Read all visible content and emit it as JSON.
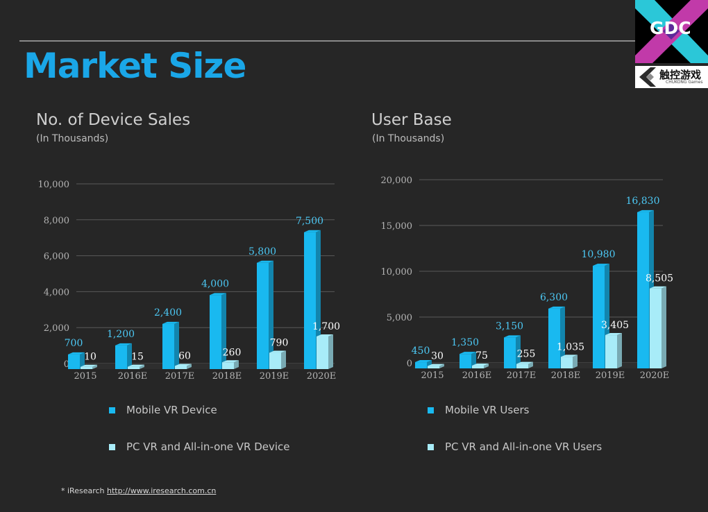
{
  "page_title": "Market Size",
  "logos": {
    "gdc_text": "GDC",
    "chukong_cn": "触控游戏",
    "chukong_en": "CHUKONG Games"
  },
  "colors": {
    "mobile": "#19b9f0",
    "pc": "#a8ecf8",
    "axis_text": "#b4b4b4",
    "grid": "#5a5a5a",
    "label_mobile": "#4cc8f4",
    "label_pc": "#ffffff"
  },
  "footnote": {
    "prefix": "* iResearch ",
    "link_text": "http://www.iresearch.com.cn"
  },
  "chart_data": [
    {
      "type": "bar",
      "title": "No. of Device Sales",
      "subtitle": "(In Thousands)",
      "categories": [
        "2015",
        "2016E",
        "2017E",
        "2018E",
        "2019E",
        "2020E"
      ],
      "series": [
        {
          "name": "Mobile VR Device",
          "values": [
            700,
            1200,
            2400,
            4000,
            5800,
            7500
          ],
          "labels": [
            "700",
            "1,200",
            "2,400",
            "4,000",
            "5,800",
            "7,500"
          ]
        },
        {
          "name": "PC VR and All-in-one VR Device",
          "values": [
            10,
            15,
            60,
            260,
            790,
            1700
          ],
          "labels": [
            "10",
            "15",
            "60",
            "260",
            "790",
            "1,700"
          ]
        }
      ],
      "ylim": [
        0,
        10000
      ],
      "yticks": [
        0,
        2000,
        4000,
        6000,
        8000,
        10000
      ],
      "ytick_labels": [
        "0",
        "2,000",
        "4,000",
        "6,000",
        "8,000",
        "10,000"
      ],
      "grid": true,
      "legend_position": "bottom"
    },
    {
      "type": "bar",
      "title": "User Base",
      "subtitle": "(In Thousands)",
      "categories": [
        "2015",
        "2016E",
        "2017E",
        "2018E",
        "2019E",
        "2020E"
      ],
      "series": [
        {
          "name": "Mobile VR Users",
          "values": [
            450,
            1350,
            3150,
            6300,
            10980,
            16830
          ],
          "labels": [
            "450",
            "1,350",
            "3,150",
            "6,300",
            "10,980",
            "16,830"
          ]
        },
        {
          "name": "PC VR and All-in-one VR Users",
          "values": [
            30,
            75,
            255,
            1035,
            3405,
            8505
          ],
          "labels": [
            "30",
            "75",
            "255",
            "1,035",
            "3,405",
            "8,505"
          ]
        }
      ],
      "ylim": [
        0,
        20000
      ],
      "yticks": [
        0,
        5000,
        10000,
        15000,
        20000
      ],
      "ytick_labels": [
        "0",
        "5,000",
        "10,000",
        "15,000",
        "20,000"
      ],
      "grid": true,
      "legend_position": "bottom"
    }
  ]
}
